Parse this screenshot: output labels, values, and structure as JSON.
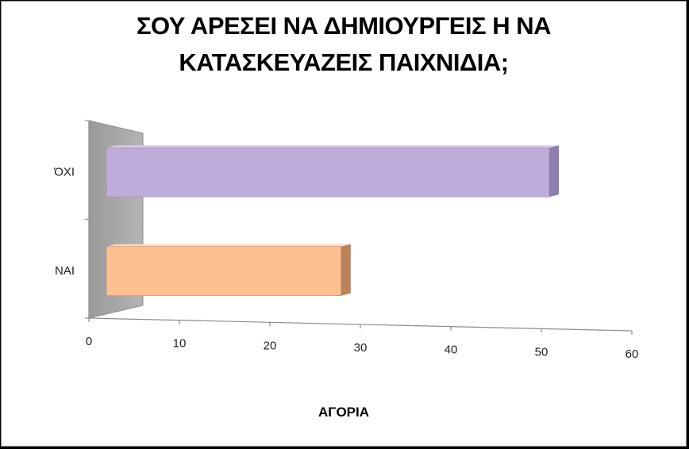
{
  "chart_data": {
    "type": "bar",
    "orientation": "horizontal",
    "title_lines": [
      "ΣΟΥ ΑΡΕΣΕΙ ΝΑ ΔΗΜΙΟΥΡΓΕΙΣ Η ΝΑ",
      "ΚΑΤΑΣΚΕΥΑΖΕΙΣ ΠΑΙΧΝΙΔΙΑ;"
    ],
    "xlabel": "ΑΓΟΡΙΑ",
    "ylabel": "",
    "categories": [
      "ΝΑΙ",
      "ΌΧΙ"
    ],
    "values": [
      27,
      50
    ],
    "bar_colors": [
      "#ffc08f",
      "#bfacdb"
    ],
    "xlim": [
      0,
      60
    ],
    "xticks": [
      0,
      10,
      20,
      30,
      40,
      50,
      60
    ],
    "style": "3d",
    "grid": false,
    "legend": "none"
  }
}
